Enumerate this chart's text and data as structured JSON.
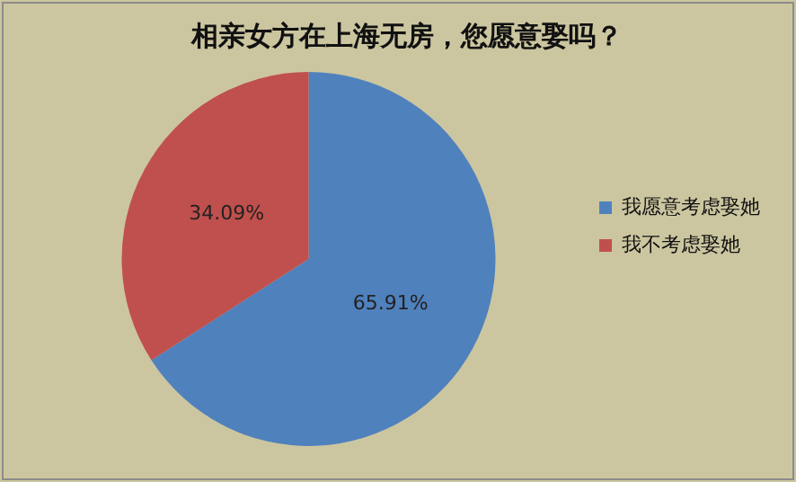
{
  "chart_data": {
    "type": "pie",
    "title": "相亲女方在上海无房，您愿意娶吗？",
    "categories": [
      "我愿意考虑娶她",
      "我不考虑娶她"
    ],
    "values": [
      65.91,
      34.09
    ],
    "colors": [
      "#4f81bd",
      "#c0504d"
    ],
    "value_labels": [
      "65.91%",
      "34.09%"
    ],
    "legend": "right"
  }
}
